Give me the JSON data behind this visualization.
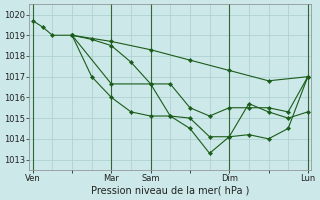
{
  "background_color": "#cce8e8",
  "grid_color": "#aacece",
  "line_color": "#1a5c1a",
  "dark_vline_color": "#336633",
  "title": "Pression niveau de la mer( hPa )",
  "ylim": [
    1012.5,
    1020.5
  ],
  "yticks": [
    1013,
    1014,
    1015,
    1016,
    1017,
    1018,
    1019,
    1020
  ],
  "x_tick_labels": [
    "Ven",
    "",
    "Mar",
    "Sam",
    "",
    "Dim",
    "",
    "Lun"
  ],
  "x_tick_positions": [
    0,
    12,
    24,
    36,
    48,
    60,
    72,
    84
  ],
  "x_dark_vlines": [
    0,
    24,
    36,
    60,
    84
  ],
  "x_total": 84,
  "lines": [
    {
      "x": [
        0,
        3,
        6,
        12,
        18,
        24,
        30,
        36,
        42,
        48,
        54,
        60,
        66,
        72,
        78,
        84
      ],
      "y": [
        1019.7,
        1019.4,
        1019.0,
        1019.0,
        1017.0,
        1016.0,
        1015.3,
        1015.1,
        1015.1,
        1015.0,
        1014.1,
        1014.1,
        1014.2,
        1014.0,
        1014.5,
        1017.0
      ]
    },
    {
      "x": [
        12,
        18,
        24,
        30,
        36,
        42,
        48,
        54,
        60,
        66,
        72,
        78,
        84
      ],
      "y": [
        1019.0,
        1018.8,
        1018.5,
        1017.7,
        1016.65,
        1016.65,
        1015.5,
        1015.1,
        1015.5,
        1015.5,
        1015.5,
        1015.3,
        1017.0
      ]
    },
    {
      "x": [
        12,
        24,
        36,
        48,
        60,
        72,
        84
      ],
      "y": [
        1019.0,
        1018.7,
        1018.3,
        1017.8,
        1017.3,
        1016.8,
        1017.0
      ]
    },
    {
      "x": [
        12,
        24,
        36,
        42,
        48,
        54,
        60,
        66,
        72,
        78,
        84
      ],
      "y": [
        1019.0,
        1016.65,
        1016.65,
        1015.1,
        1014.5,
        1013.3,
        1014.1,
        1015.7,
        1015.3,
        1015.0,
        1015.3
      ]
    }
  ],
  "marker": "D",
  "marker_size": 2.2,
  "line_width": 0.8,
  "tick_fontsize": 6,
  "xlabel_fontsize": 7
}
